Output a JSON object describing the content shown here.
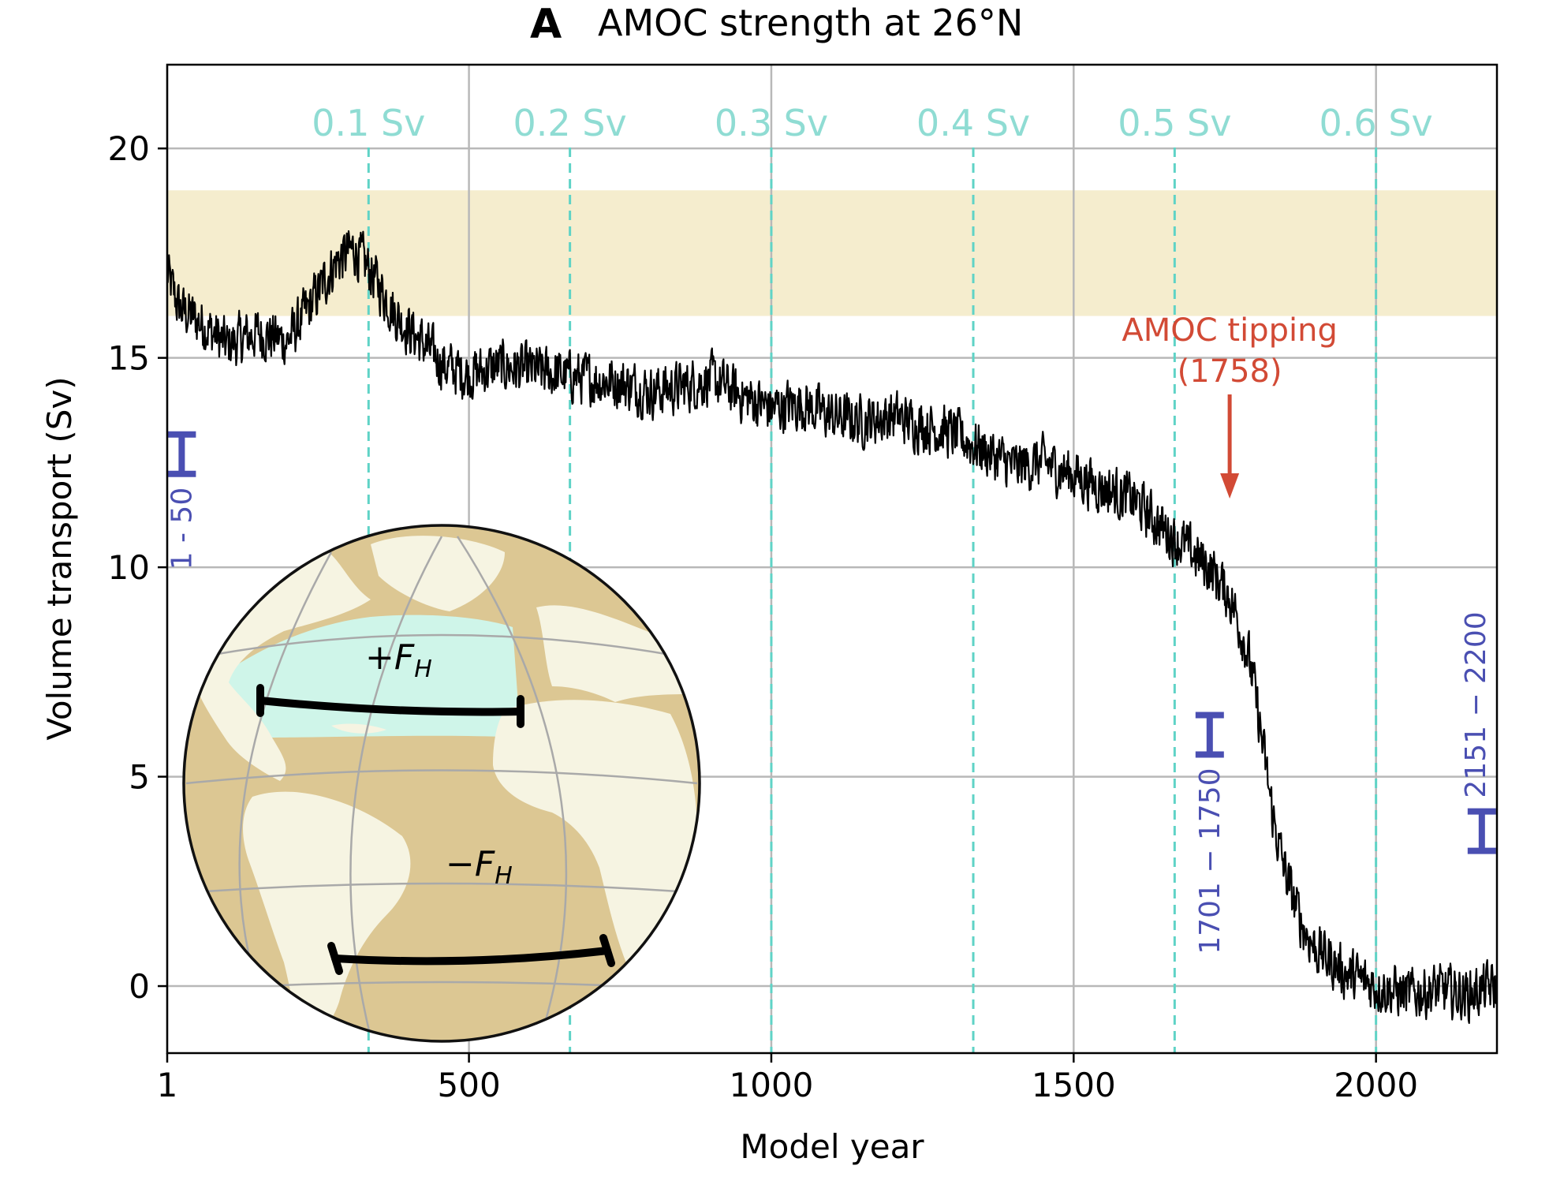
{
  "chart_data": {
    "type": "line",
    "panel_letter": "A",
    "title": "AMOC strength at 26°N",
    "xlabel": "Model year",
    "ylabel": "Volume transport (Sv)",
    "xlim": [
      1,
      2200
    ],
    "ylim": [
      -1.6,
      22
    ],
    "xticks": [
      1,
      500,
      1000,
      1500,
      2000
    ],
    "xtick_labels": [
      "1",
      "500",
      "1000",
      "1500",
      "2000"
    ],
    "yticks": [
      0,
      5,
      10,
      15,
      20
    ],
    "ytick_labels": [
      "0",
      "5",
      "10",
      "15",
      "20"
    ],
    "grid": true,
    "observed_band": {
      "y_min": 16,
      "y_max": 19,
      "color": "#f5edce"
    },
    "forcing_markers": {
      "color": "#5fd3c6",
      "items": [
        {
          "label": "0.1 Sv",
          "x": 334
        },
        {
          "label": "0.2 Sv",
          "x": 667
        },
        {
          "label": "0.3 Sv",
          "x": 1000
        },
        {
          "label": "0.4 Sv",
          "x": 1334
        },
        {
          "label": "0.5 Sv",
          "x": 1667
        },
        {
          "label": "0.6 Sv",
          "x": 2000
        }
      ]
    },
    "series": [
      {
        "color": "#000000",
        "keypoints": {
          "x": [
            1,
            20,
            60,
            100,
            150,
            200,
            240,
            280,
            310,
            340,
            380,
            420,
            460,
            500,
            550,
            600,
            650,
            700,
            750,
            800,
            850,
            900,
            950,
            1000,
            1050,
            1100,
            1150,
            1200,
            1250,
            1300,
            1350,
            1400,
            1450,
            1500,
            1550,
            1600,
            1650,
            1700,
            1730,
            1758,
            1775,
            1790,
            1800,
            1810,
            1820,
            1830,
            1845,
            1860,
            1880,
            1900,
            1950,
            2000,
            2050,
            2100,
            2150,
            2200
          ],
          "y": [
            17.0,
            16.2,
            15.8,
            15.3,
            15.6,
            15.4,
            16.3,
            17.3,
            17.6,
            17.0,
            16.0,
            15.4,
            14.8,
            14.6,
            14.8,
            14.7,
            14.6,
            14.5,
            14.4,
            14.2,
            14.3,
            14.5,
            14.1,
            13.8,
            13.9,
            13.6,
            13.5,
            13.6,
            13.4,
            13.2,
            12.8,
            12.4,
            12.5,
            12.2,
            11.9,
            11.6,
            10.9,
            10.3,
            9.9,
            9.3,
            8.6,
            7.8,
            7.0,
            6.0,
            5.0,
            4.0,
            3.0,
            2.2,
            1.4,
            0.9,
            0.3,
            0.0,
            -0.2,
            -0.1,
            -0.2,
            0.0
          ]
        },
        "noise_amplitude_sv": 0.55
      }
    ],
    "annotations": {
      "tipping": {
        "line1": "AMOC tipping",
        "line2": "(1758)",
        "x": 1758,
        "color": "#d24a35"
      },
      "averaging_periods": {
        "color": "#4a4fb2",
        "items": [
          {
            "label": "1 - 50",
            "x": 25,
            "y": 12.7
          },
          {
            "label": "1701 − 1750",
            "x": 1725,
            "y": 6.0
          },
          {
            "label": "2151 − 2200",
            "x": 2175,
            "y": 3.7
          }
        ]
      }
    },
    "inset_globe": {
      "label_north": "+F",
      "label_north_sub": "H",
      "label_south": "−F",
      "label_south_sub": "H",
      "ocean_color": "#dcc793",
      "land_color": "#f6f4e2",
      "freshwater_region_color": "#cff5e9"
    }
  }
}
